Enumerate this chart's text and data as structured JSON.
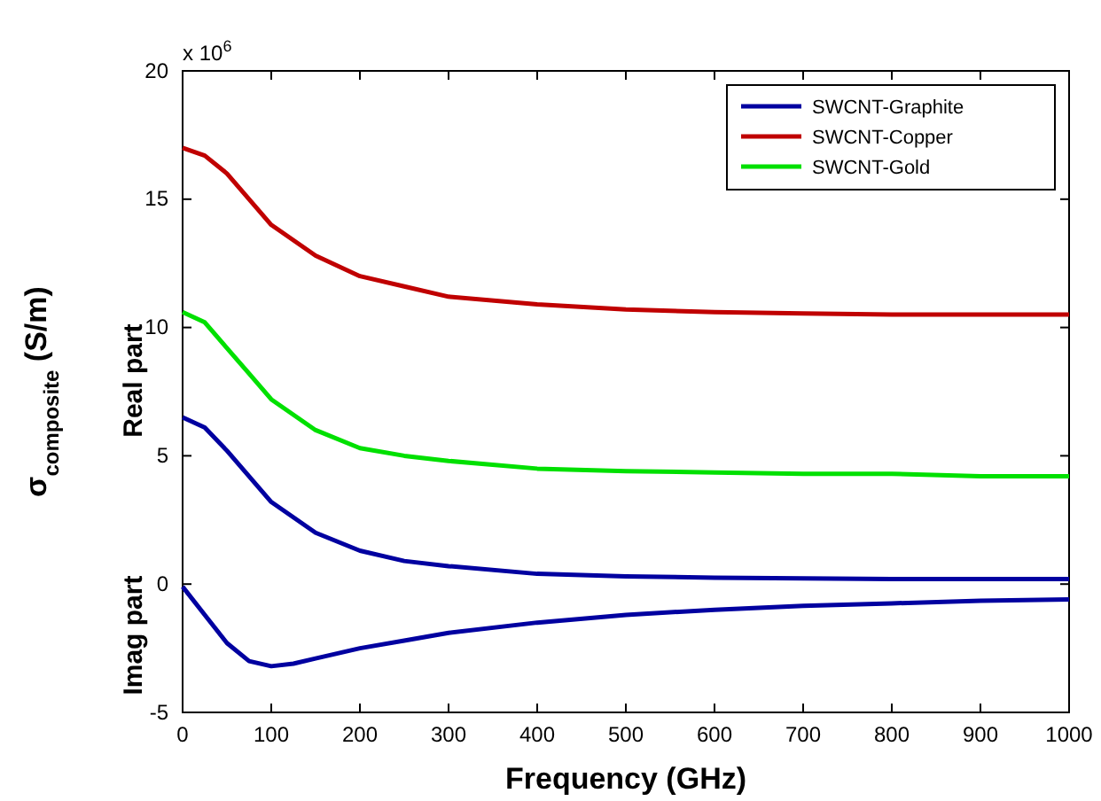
{
  "chart_data": {
    "type": "line",
    "xlabel": "Frequency (GHz)",
    "ylabel": "σ$_{composite}$ (S/m)",
    "annotations": [
      "x 10$^{6}$",
      "Real part",
      "Imag part"
    ],
    "xlim": [
      0,
      1000
    ],
    "xticks": [
      0,
      100,
      200,
      300,
      400,
      500,
      600,
      700,
      800,
      900,
      1000
    ],
    "ylim": [
      -5,
      20
    ],
    "yticks": [
      -5,
      0,
      5,
      10,
      15,
      20
    ],
    "grid": false,
    "legend": "top right",
    "line_style": "solid",
    "marker": "none",
    "x": [
      0,
      25,
      50,
      75,
      100,
      150,
      200,
      250,
      300,
      400,
      500,
      600,
      700,
      800,
      900,
      1000
    ],
    "series": [
      {
        "name": "SWCNT-Graphite",
        "color": "#0000a0",
        "values": [
          6.5,
          6.1,
          5.2,
          4.2,
          3.2,
          2,
          1.3,
          0.9,
          0.7,
          0.4,
          0.3,
          0.25,
          0.22,
          0.2,
          0.2,
          0.2
        ]
      },
      {
        "name": "SWCNT-Copper",
        "color": "#c00000",
        "values": [
          17,
          16.7,
          16,
          15,
          14,
          12.8,
          12,
          11.6,
          11.2,
          10.9,
          10.7,
          10.6,
          10.55,
          10.5,
          10.5,
          10.5
        ]
      },
      {
        "name": "SWCNT-Gold",
        "color": "#00e000",
        "values": [
          10.6,
          10.2,
          9.2,
          8.2,
          7.2,
          6,
          5.3,
          5,
          4.8,
          4.5,
          4.4,
          4.35,
          4.3,
          4.3,
          4.2,
          4.2
        ]
      },
      {
        "color": "#0000a0",
        "x": [
          0,
          25,
          50,
          75,
          100,
          125,
          150,
          200,
          250,
          300,
          400,
          500,
          600,
          700,
          800,
          900,
          1000
        ],
        "values": [
          -0.1,
          -1.2,
          -2.3,
          -3,
          -3.2,
          -3.1,
          -2.9,
          -2.5,
          -2.2,
          -1.9,
          -1.5,
          -1.2,
          -1,
          -0.85,
          -0.75,
          -0.65,
          -0.6
        ]
      }
    ]
  }
}
